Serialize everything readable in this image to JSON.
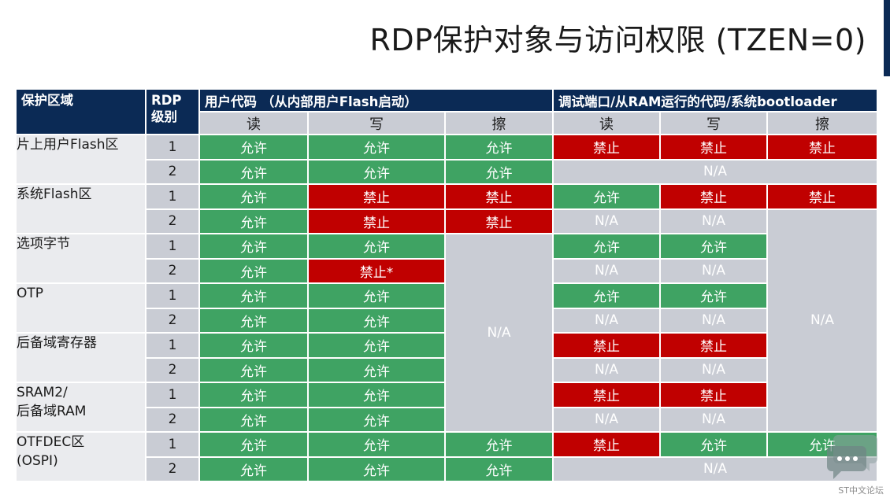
{
  "title": "RDP保护对象与访问权限 (TZEN=0)",
  "header": {
    "area": "保护区域",
    "rdp_line1": "RDP",
    "rdp_line2": "级别",
    "user_code": "用户代码 （从内部用户Flash启动）",
    "debug": "调试端口/从RAM运行的代码/系统bootloader",
    "read": "读",
    "write": "写",
    "erase": "擦"
  },
  "areas": {
    "user_flash": "片上用户Flash区",
    "sys_flash": "系统Flash区",
    "option_bytes": "选项字节",
    "otp": "OTP",
    "backup_regs": "后备域寄存器",
    "sram2_line1": "SRAM2/",
    "sram2_line2": "后备域RAM",
    "otfdec_line1": "OTFDEC区",
    "otfdec_line2": "(OSPI)"
  },
  "levels": {
    "one": "1",
    "two": "2"
  },
  "values": {
    "allow": "允许",
    "deny": "禁止",
    "deny_star": "禁止*",
    "na": "N/A"
  },
  "watermark": "ST中文论坛",
  "colors": {
    "header_bg": "#0b2a55",
    "allow": "#3fa363",
    "deny": "#c00000",
    "na": "#c9ccd4"
  }
}
